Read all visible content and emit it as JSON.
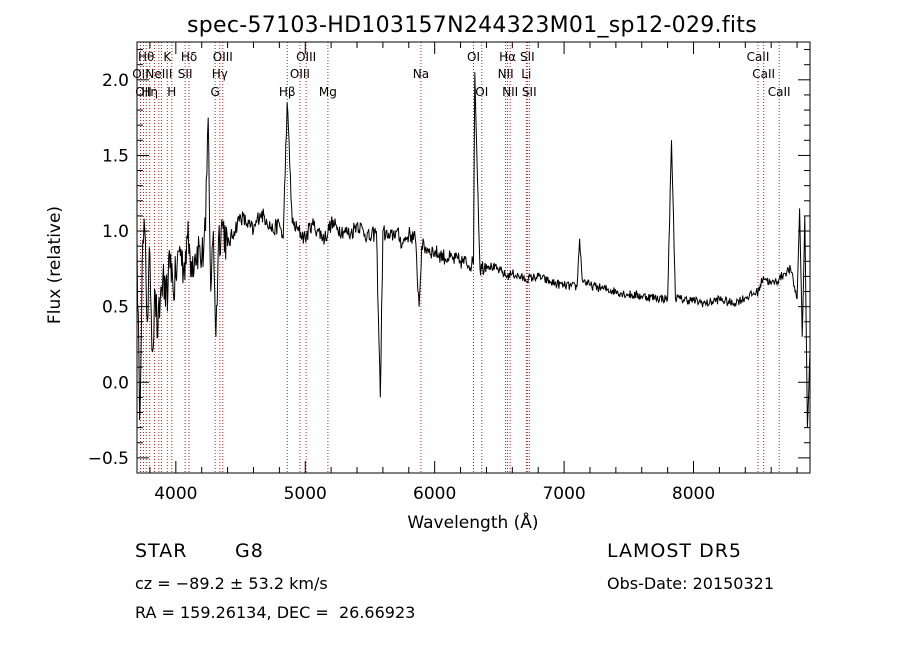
{
  "chart_data": {
    "type": "line",
    "title": "spec-57103-HD103157N244323M01_sp12-029.fits",
    "xlabel": "Wavelength (Å)",
    "ylabel": "Flux (relative)",
    "xlim": [
      3700,
      8900
    ],
    "ylim": [
      -0.6,
      2.25
    ],
    "xticks": [
      4000,
      5000,
      6000,
      7000,
      8000
    ],
    "yticks": [
      -0.5,
      0.0,
      0.5,
      1.0,
      1.5,
      2.0
    ],
    "xtick_labels": [
      "4000",
      "5000",
      "6000",
      "7000",
      "8000"
    ],
    "ytick_labels": [
      "−0.5",
      "0.0",
      "0.5",
      "1.0",
      "1.5",
      "2.0"
    ],
    "series": [
      {
        "x": [
          3700,
          3720,
          3740,
          3760,
          3780,
          3800,
          3820,
          3840,
          3860,
          3880,
          3900,
          3920,
          3940,
          3960,
          3980,
          4000,
          4030,
          4060,
          4090,
          4120,
          4150,
          4180,
          4200,
          4230,
          4250,
          4270,
          4290,
          4310,
          4330,
          4360,
          4400,
          4450,
          4500,
          4550,
          4600,
          4650,
          4700,
          4750,
          4800,
          4830,
          4860,
          4900,
          4950,
          5000,
          5050,
          5100,
          5150,
          5200,
          5250,
          5300,
          5350,
          5400,
          5450,
          5500,
          5550,
          5580,
          5600,
          5650,
          5700,
          5750,
          5800,
          5850,
          5880,
          5900,
          5950,
          6000,
          6100,
          6200,
          6300,
          6310,
          6350,
          6400,
          6500,
          6560,
          6600,
          6700,
          6800,
          6900,
          7000,
          7100,
          7120,
          7140,
          7200,
          7300,
          7400,
          7500,
          7600,
          7700,
          7800,
          7830,
          7860,
          7900,
          8000,
          8100,
          8200,
          8300,
          8400,
          8500,
          8540,
          8600,
          8660,
          8700,
          8750,
          8800,
          8820,
          8840,
          8860,
          8880,
          8900
        ],
        "y": [
          0.95,
          -0.25,
          0.8,
          1.0,
          0.4,
          0.85,
          0.2,
          0.6,
          0.3,
          0.55,
          0.7,
          0.5,
          0.65,
          0.85,
          0.6,
          0.7,
          0.9,
          0.75,
          0.95,
          0.8,
          0.85,
          0.9,
          0.8,
          1.0,
          1.75,
          0.6,
          1.0,
          0.3,
          0.95,
          1.05,
          0.9,
          1.0,
          1.1,
          1.05,
          1.0,
          1.12,
          1.08,
          1.0,
          1.05,
          0.95,
          1.85,
          1.05,
          1.0,
          0.95,
          1.05,
          1.0,
          0.95,
          1.05,
          1.02,
          1.0,
          0.98,
          1.05,
          1.0,
          0.95,
          1.0,
          -0.1,
          1.0,
          0.95,
          1.0,
          0.92,
          0.98,
          0.95,
          0.5,
          0.9,
          0.88,
          0.86,
          0.82,
          0.8,
          0.78,
          2.05,
          0.75,
          0.78,
          0.74,
          0.7,
          0.72,
          0.68,
          0.7,
          0.66,
          0.64,
          0.63,
          0.95,
          0.68,
          0.64,
          0.62,
          0.6,
          0.58,
          0.57,
          0.56,
          0.55,
          1.6,
          0.56,
          0.55,
          0.54,
          0.52,
          0.55,
          0.52,
          0.56,
          0.6,
          0.7,
          0.65,
          0.68,
          0.72,
          0.75,
          0.55,
          1.15,
          0.3,
          1.1,
          -0.3,
          0.2
        ]
      }
    ],
    "emission_lines": [
      {
        "x": 3727,
        "label": "OII",
        "row": 1
      },
      {
        "x": 3750,
        "label": "OII",
        "row": 2
      },
      {
        "x": 3771,
        "label": "Hθ",
        "row": 0
      },
      {
        "x": 3798,
        "label": "Hη",
        "row": 2
      },
      {
        "x": 3835,
        "label": "",
        "row": 0
      },
      {
        "x": 3869,
        "label": "NeIII",
        "row": 1
      },
      {
        "x": 3889,
        "label": "",
        "row": 0
      },
      {
        "x": 3934,
        "label": "K",
        "row": 0
      },
      {
        "x": 3969,
        "label": "H",
        "row": 2
      },
      {
        "x": 4072,
        "label": "SII",
        "row": 1
      },
      {
        "x": 4102,
        "label": "Hδ",
        "row": 0
      },
      {
        "x": 4304,
        "label": "G",
        "row": 2
      },
      {
        "x": 4340,
        "label": "Hγ",
        "row": 1
      },
      {
        "x": 4363,
        "label": "OIII",
        "row": 0
      },
      {
        "x": 4861,
        "label": "Hβ",
        "row": 2
      },
      {
        "x": 4959,
        "label": "OIII",
        "row": 1
      },
      {
        "x": 5007,
        "label": "OIII",
        "row": 0
      },
      {
        "x": 5175,
        "label": "Mg",
        "row": 2
      },
      {
        "x": 5894,
        "label": "Na",
        "row": 1
      },
      {
        "x": 6300,
        "label": "OI",
        "row": 0
      },
      {
        "x": 6364,
        "label": "OI",
        "row": 2
      },
      {
        "x": 6548,
        "label": "NII",
        "row": 1
      },
      {
        "x": 6563,
        "label": "Hα",
        "row": 0
      },
      {
        "x": 6583,
        "label": "NII",
        "row": 2
      },
      {
        "x": 6708,
        "label": "Li",
        "row": 1
      },
      {
        "x": 6716,
        "label": "SII",
        "row": 0
      },
      {
        "x": 6731,
        "label": "SII",
        "row": 2
      },
      {
        "x": 8498,
        "label": "CaII",
        "row": 0
      },
      {
        "x": 8542,
        "label": "CaII",
        "row": 1
      },
      {
        "x": 8662,
        "label": "CaII",
        "row": 2
      }
    ],
    "grid": false,
    "colors": {
      "spectrum": "#000000",
      "lines": "#b22222",
      "axes": "#000000"
    }
  },
  "info": {
    "object_class": "STAR",
    "subclass": "G8",
    "survey": "LAMOST DR5",
    "redshift": "cz = −89.2 ± 53.2 km/s",
    "obs_date": "Obs-Date: 20150321",
    "coords": "RA = 159.26134, DEC =  26.66923"
  }
}
